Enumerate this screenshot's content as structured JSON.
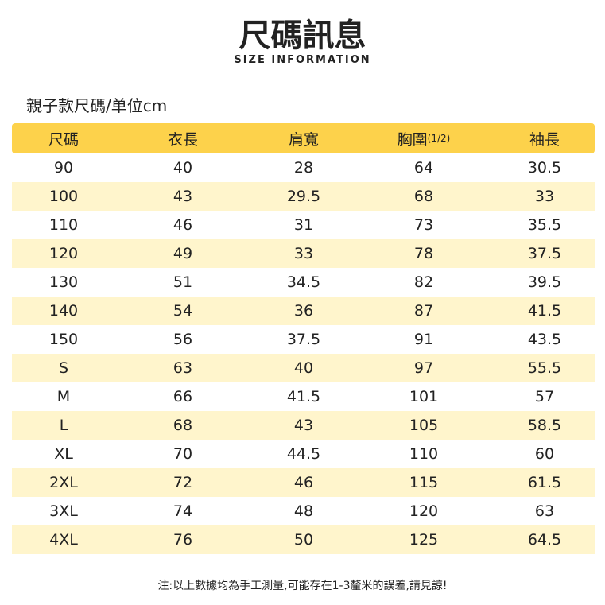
{
  "header": {
    "title": "尺碼訊息",
    "subtitle": "SIZE INFORMATION"
  },
  "table": {
    "caption": "親子款尺碼/单位cm",
    "columns": [
      "尺碼",
      "衣長",
      "肩寬",
      "胸圍",
      "袖長"
    ],
    "column_suffix": "(1/2)",
    "rows": [
      [
        90,
        40,
        28,
        64,
        30.5
      ],
      [
        100,
        43,
        29.5,
        68,
        33
      ],
      [
        110,
        46,
        31,
        73,
        35.5
      ],
      [
        120,
        49,
        33,
        78,
        37.5
      ],
      [
        130,
        51,
        34.5,
        82,
        39.5
      ],
      [
        140,
        54,
        36,
        87,
        41.5
      ],
      [
        150,
        56,
        37.5,
        91,
        43.5
      ],
      [
        "S",
        63,
        40,
        97,
        55.5
      ],
      [
        "M",
        66,
        41.5,
        101,
        57
      ],
      [
        "L",
        68,
        43,
        105,
        58.5
      ],
      [
        "XL",
        70,
        44.5,
        110,
        60
      ],
      [
        "2XL",
        72,
        46,
        115,
        61.5
      ],
      [
        "3XL",
        74,
        48,
        120,
        63
      ],
      [
        "4XL",
        76,
        50,
        125,
        64.5
      ]
    ]
  },
  "note": "注:以上數據均為手工測量,可能存在1-3釐米的誤差,請見諒!"
}
